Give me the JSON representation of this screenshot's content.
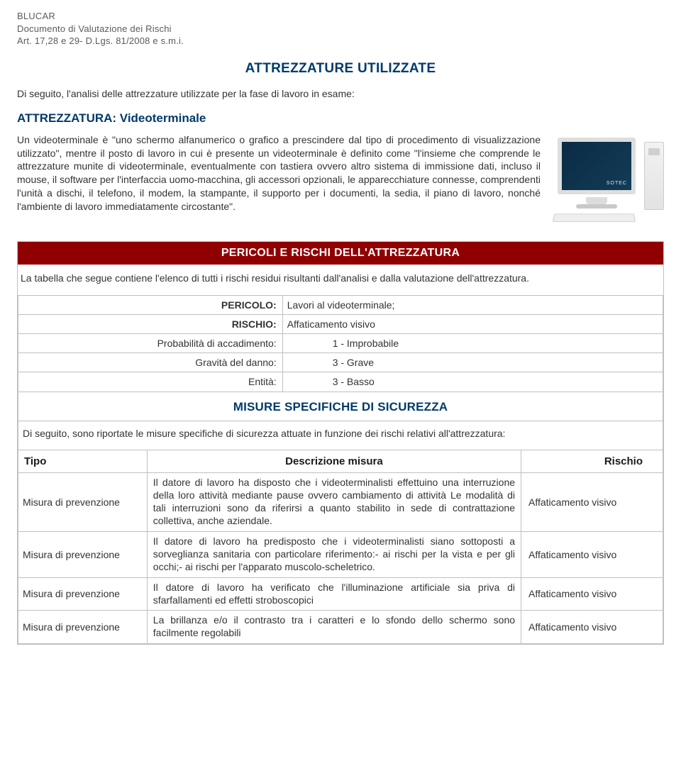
{
  "header": {
    "line1": "BLUCAR",
    "line2": "Documento di Valutazione dei Rischi",
    "line3": "Art. 17,28 e 29- D.Lgs. 81/2008 e s.m.i."
  },
  "title": "ATTREZZATURE UTILIZZATE",
  "intro": "Di seguito, l'analisi delle attrezzature utilizzate per la fase di lavoro in esame:",
  "equipment": {
    "label": "ATTREZZATURA: Videoterminale",
    "description": "Un videoterminale è \"uno schermo alfanumerico o grafico a prescindere dal tipo di procedimento di visualizzazione utilizzato\", mentre il posto di lavoro in cui è presente un videoterminale è definito come \"l'insieme che comprende le attrezzature munite di videoterminale, eventualmente con tastiera ovvero altro sistema di immissione dati, incluso il mouse, il software per l'interfaccia uomo-macchina, gli accessori opzionali, le apparecchiature connesse, comprendenti l'unità a dischi, il telefono, il modem, la stampante, il supporto per i documenti, la sedia, il piano di lavoro, nonché l'ambiente di lavoro immediatamente circostante\"."
  },
  "risks": {
    "band": "PERICOLI E RISCHI DELL'ATTREZZATURA",
    "note": "La tabella che segue contiene l'elenco di tutti i rischi residui risultanti dall'analisi e dalla valutazione dell'attrezzatura.",
    "rows": [
      {
        "label": "PERICOLO:",
        "value": "Lavori al videoterminale;"
      },
      {
        "label": "RISCHIO:",
        "value": "Affaticamento visivo"
      },
      {
        "label": "Probabilità di accadimento:",
        "value": "1 - Improbabile"
      },
      {
        "label": "Gravità del danno:",
        "value": "3 - Grave"
      },
      {
        "label": "Entità:",
        "value": "3 - Basso"
      }
    ]
  },
  "measures": {
    "subhead": "MISURE SPECIFICHE DI SICUREZZA",
    "intro": "Di seguito, sono riportate le misure specifiche di sicurezza attuate in funzione dei rischi relativi all'attrezzatura:",
    "columns": [
      "Tipo",
      "Descrizione misura",
      "Rischio"
    ],
    "items": [
      {
        "tipo": "Misura di prevenzione",
        "desc": "Il datore di lavoro ha disposto che i videoterminalisti effettuino una interruzione della loro attività mediante pause ovvero cambiamento di attività Le modalità di tali interruzioni sono da riferirsi a quanto stabilito in sede di contrattazione collettiva, anche aziendale.",
        "rischio": "Affaticamento visivo"
      },
      {
        "tipo": "Misura di prevenzione",
        "desc": "Il datore di lavoro ha predisposto che i videoterminalisti siano sottoposti a sorveglianza sanitaria con particolare riferimento:- ai rischi per la vista e per gli occhi;- ai rischi per l'apparato muscolo-scheletrico.",
        "rischio": "Affaticamento visivo"
      },
      {
        "tipo": "Misura di prevenzione",
        "desc": "Il datore di lavoro ha verificato che l'illuminazione artificiale sia priva di sfarfallamenti ed effetti stroboscopici",
        "rischio": "Affaticamento visivo"
      },
      {
        "tipo": "Misura di prevenzione",
        "desc": "La brillanza e/o il contrasto tra i caratteri e lo sfondo dello schermo sono facilmente regolabili",
        "rischio": "Affaticamento visivo"
      }
    ]
  },
  "colors": {
    "brand_blue": "#003a6a",
    "band_red": "#900000",
    "text": "#333333",
    "header_grey": "#5b5b5b",
    "border": "#c0c0c0"
  }
}
